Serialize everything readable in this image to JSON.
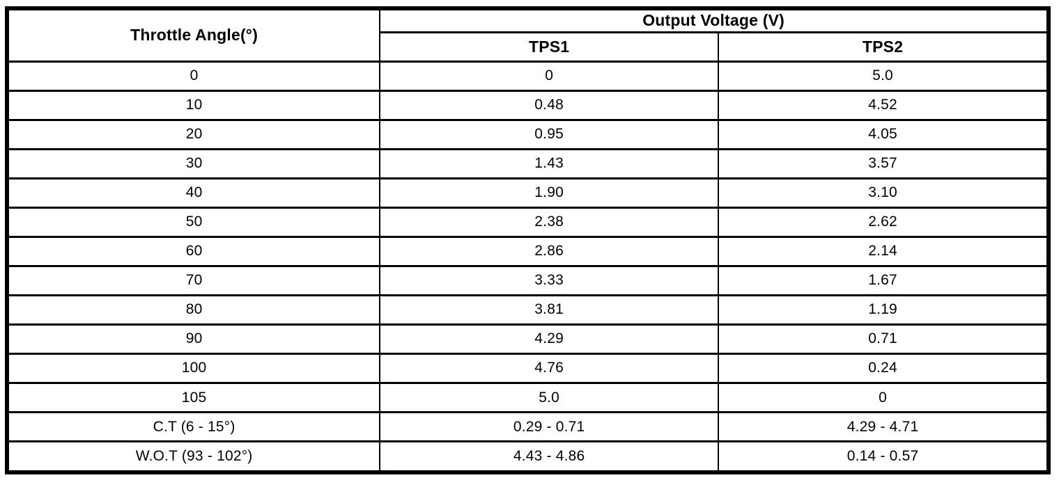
{
  "table": {
    "headers": {
      "throttle_angle": "Throttle Angle(°)",
      "output_voltage_group": "Output Voltage (V)",
      "tps1": "TPS1",
      "tps2": "TPS2"
    },
    "rows": [
      {
        "angle": "0",
        "tps1": "0",
        "tps2": "5.0"
      },
      {
        "angle": "10",
        "tps1": "0.48",
        "tps2": "4.52"
      },
      {
        "angle": "20",
        "tps1": "0.95",
        "tps2": "4.05"
      },
      {
        "angle": "30",
        "tps1": "1.43",
        "tps2": "3.57"
      },
      {
        "angle": "40",
        "tps1": "1.90",
        "tps2": "3.10"
      },
      {
        "angle": "50",
        "tps1": "2.38",
        "tps2": "2.62"
      },
      {
        "angle": "60",
        "tps1": "2.86",
        "tps2": "2.14"
      },
      {
        "angle": "70",
        "tps1": "3.33",
        "tps2": "1.67"
      },
      {
        "angle": "80",
        "tps1": "3.81",
        "tps2": "1.19"
      },
      {
        "angle": "90",
        "tps1": "4.29",
        "tps2": "0.71"
      },
      {
        "angle": "100",
        "tps1": "4.76",
        "tps2": "0.24"
      },
      {
        "angle": "105",
        "tps1": "5.0",
        "tps2": "0"
      },
      {
        "angle": "C.T (6 - 15°)",
        "tps1": "0.29 - 0.71",
        "tps2": "4.29 - 4.71"
      },
      {
        "angle": "W.O.T (93 - 102°)",
        "tps1": "4.43 - 4.86",
        "tps2": "0.14 - 0.57"
      }
    ],
    "colors": {
      "border": "#000000",
      "background": "#ffffff",
      "text": "#000000"
    }
  }
}
